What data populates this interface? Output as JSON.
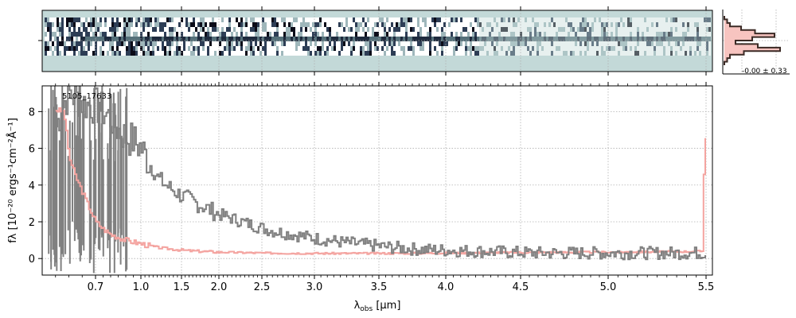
{
  "chart_data": [
    {
      "type": "heatmap",
      "title": "",
      "description_label": "2D spectrum cutout",
      "colors": {
        "background": "#c3d9d8",
        "dark": "#0b0b18",
        "bright": "#ffffff"
      },
      "grid": true
    },
    {
      "type": "line",
      "title": "",
      "profile_label": "-0.00 ± 0.33",
      "series": [
        {
          "values": [
            0.0,
            0.05,
            0.1,
            0.3,
            0.55,
            0.9,
            0.5,
            0.2,
            0.6,
            1.0,
            0.35,
            0.1,
            0.05,
            0.0
          ]
        }
      ],
      "colors": {
        "line": "#3b2a25",
        "fill": "#f7c4c0"
      }
    },
    {
      "type": "line",
      "annotation": "5105_17633",
      "xlabel": "λobs [μm]",
      "xlabel_main": "λ",
      "xlabel_sub": "obs",
      "xlabel_units": " [μm]",
      "ylabel": "fλ [10⁻²⁰ ergs⁻¹cm⁻²Å⁻¹]",
      "ylim": [
        -0.9,
        9.4
      ],
      "xlim": [
        0.5,
        5.52
      ],
      "yticks": [
        0,
        2,
        4,
        6,
        8
      ],
      "ytick_labels": [
        "0",
        "2",
        "4",
        "6",
        "8"
      ],
      "xticks": [
        0.7,
        1.0,
        1.5,
        2.0,
        2.5,
        3.0,
        3.5,
        4.0,
        4.5,
        5.0,
        5.5
      ],
      "xtick_labels": [
        "0.7",
        "1.0",
        "1.5",
        "2.0",
        "2.5",
        "3.0",
        "3.5",
        "4.0",
        "4.5",
        "5.0",
        "5.5"
      ],
      "grid": true,
      "series": [
        {
          "color": "#808080",
          "points": [
            [
              0.55,
              7.2
            ],
            [
              0.58,
              8.5
            ],
            [
              0.6,
              9.0
            ],
            [
              0.63,
              8.7
            ],
            [
              0.66,
              8.4
            ],
            [
              0.7,
              8.3
            ],
            [
              0.75,
              8.0
            ],
            [
              0.8,
              7.6
            ],
            [
              0.85,
              7.0
            ],
            [
              0.9,
              6.6
            ],
            [
              0.95,
              6.4
            ],
            [
              1.0,
              6.0
            ],
            [
              1.05,
              5.6
            ],
            [
              1.1,
              5.2
            ],
            [
              1.15,
              4.8
            ],
            [
              1.2,
              4.4
            ],
            [
              1.3,
              4.0
            ],
            [
              1.4,
              3.7
            ],
            [
              1.5,
              3.4
            ],
            [
              1.6,
              3.2
            ],
            [
              1.7,
              3.0
            ],
            [
              1.8,
              2.8
            ],
            [
              1.9,
              2.6
            ],
            [
              2.0,
              2.4
            ],
            [
              2.2,
              2.1
            ],
            [
              2.4,
              1.8
            ],
            [
              2.6,
              1.5
            ],
            [
              2.8,
              1.3
            ],
            [
              3.0,
              1.1
            ],
            [
              3.2,
              0.9
            ],
            [
              3.4,
              0.75
            ],
            [
              3.6,
              0.6
            ],
            [
              3.8,
              0.5
            ],
            [
              4.0,
              0.45
            ],
            [
              4.2,
              0.4
            ],
            [
              4.4,
              0.35
            ],
            [
              4.6,
              0.3
            ],
            [
              4.8,
              0.3
            ],
            [
              5.0,
              0.3
            ],
            [
              5.2,
              0.3
            ],
            [
              5.4,
              0.3
            ],
            [
              5.5,
              0.3
            ]
          ]
        },
        {
          "color": "#f4a4a0",
          "points": [
            [
              0.55,
              8.1
            ],
            [
              0.58,
              8.0
            ],
            [
              0.6,
              5.5
            ],
            [
              0.62,
              4.6
            ],
            [
              0.65,
              3.6
            ],
            [
              0.68,
              2.6
            ],
            [
              0.7,
              2.0
            ],
            [
              0.75,
              1.6
            ],
            [
              0.8,
              1.3
            ],
            [
              0.9,
              1.0
            ],
            [
              1.0,
              0.8
            ],
            [
              1.2,
              0.6
            ],
            [
              1.4,
              0.5
            ],
            [
              1.6,
              0.42
            ],
            [
              2.0,
              0.35
            ],
            [
              2.5,
              0.3
            ],
            [
              3.0,
              0.28
            ],
            [
              3.5,
              0.28
            ],
            [
              4.0,
              0.3
            ],
            [
              4.5,
              0.33
            ],
            [
              5.0,
              0.35
            ],
            [
              5.4,
              0.38
            ],
            [
              5.48,
              0.4
            ],
            [
              5.49,
              6.6
            ],
            [
              5.5,
              6.6
            ]
          ]
        }
      ]
    }
  ]
}
